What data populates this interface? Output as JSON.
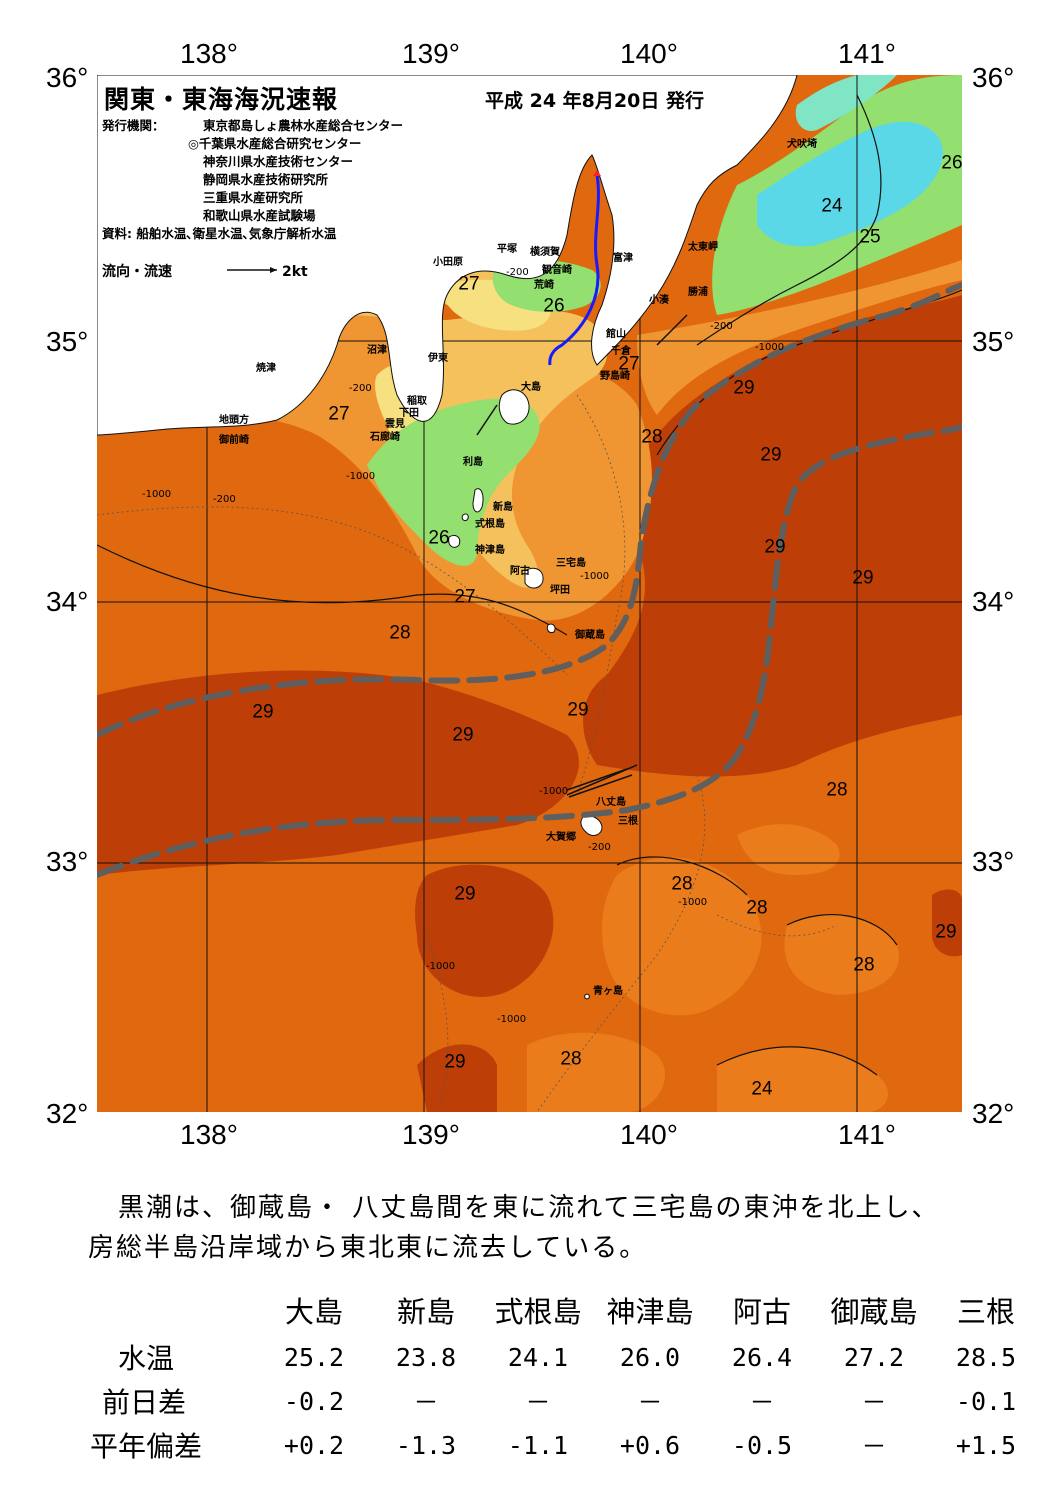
{
  "title": "関東・東海海況速報",
  "issue_date": "平成 24 年8月20日 発行",
  "issuer_label": "発行機関：",
  "issuers": [
    "東京都島しょ農林水産総合センター",
    "◎千葉県水産総合研究センター",
    "神奈川県水産技術センター",
    "静岡県水産技術研究所",
    "三重県水産研究所",
    "和歌山県水産試験場"
  ],
  "sources": "資料: 船舶水温､衛星水温､気象庁解析水温",
  "legend": {
    "label": "流向・流速",
    "scale": "2kt"
  },
  "axes": {
    "lon_labels": [
      "138°",
      "139°",
      "140°",
      "141°"
    ],
    "lat_labels": [
      "36°",
      "35°",
      "34°",
      "33°",
      "32°"
    ]
  },
  "isotherm_labels": [
    "24",
    "25",
    "26",
    "26",
    "27",
    "27",
    "27",
    "27",
    "28",
    "28",
    "29",
    "29",
    "29",
    "29",
    "29",
    "29",
    "29",
    "28",
    "28",
    "28",
    "29",
    "28",
    "29",
    "28",
    "28"
  ],
  "depth_labels": [
    "-1000",
    "-200",
    "-1000",
    "-200",
    "-1000",
    "-200",
    "-1000",
    "-200",
    "-1000",
    "-1000",
    "-1000",
    "-200",
    "-1000"
  ],
  "place_names": {
    "inubozaki": "犬吠埼",
    "taitozaki": "太東岬",
    "katsuura": "勝浦",
    "kominato": "小湊",
    "tateyama": "館山",
    "chikura": "千倉",
    "nojimazaki": "野島崎",
    "futtsu": "富津",
    "yokosuka": "横須賀",
    "kannonzaki": "観音崎",
    "arasaki": "荒崎",
    "hiratsuka": "平塚",
    "odawara": "小田原",
    "numazu": "沼津",
    "ito": "伊東",
    "yaizu": "焼津",
    "inatori": "稲取",
    "shimoda": "下田",
    "kumomi": "雲見",
    "irozaki": "石廊崎",
    "jitogata": "地頭方",
    "omaezaki": "御前崎",
    "oshima": "大島",
    "toshima": "利島",
    "niijima": "新島",
    "shikinejima": "式根島",
    "kozushima": "神津島",
    "ako": "阿古",
    "miyakejima": "三宅島",
    "tsubota": "坪田",
    "mikurajima": "御蔵島",
    "hachijojima": "八丈島",
    "mitsune": "三根",
    "okago": "大賀郷",
    "aogashima": "青ヶ島"
  },
  "colors": {
    "warm_29": "#bd3f07",
    "warm_28": "#e0680f",
    "warm_27": "#ef9531",
    "warm_26": "#f5c15c",
    "mid_25": "#f7e080",
    "green_24": "#93df6f",
    "cyan_23": "#5bd8e8",
    "kuroshio_axis": "#5f5f5f",
    "land": "#ffffff",
    "track": "#1a1aff"
  },
  "summary": [
    "黒潮は、御蔵島・ 八丈島間を東に流れて三宅島の東沖を北上し、",
    "房総半島沿岸域から東北東に流去している。"
  ],
  "table": {
    "stations": [
      "大島",
      "新島",
      "式根島",
      "神津島",
      "阿古",
      "御蔵島",
      "三根"
    ],
    "rows": [
      {
        "label": "水温",
        "values": [
          "25.2",
          "23.8",
          "24.1",
          "26.0",
          "26.4",
          "27.2",
          "28.5"
        ]
      },
      {
        "label": "前日差",
        "values": [
          "-0.2",
          "－",
          "－",
          "－",
          "－",
          "－",
          "-0.1"
        ]
      },
      {
        "label": "平年偏差",
        "values": [
          "+0.2",
          "-1.3",
          "-1.1",
          "+0.6",
          "-0.5",
          "－",
          "+1.5"
        ]
      }
    ]
  }
}
